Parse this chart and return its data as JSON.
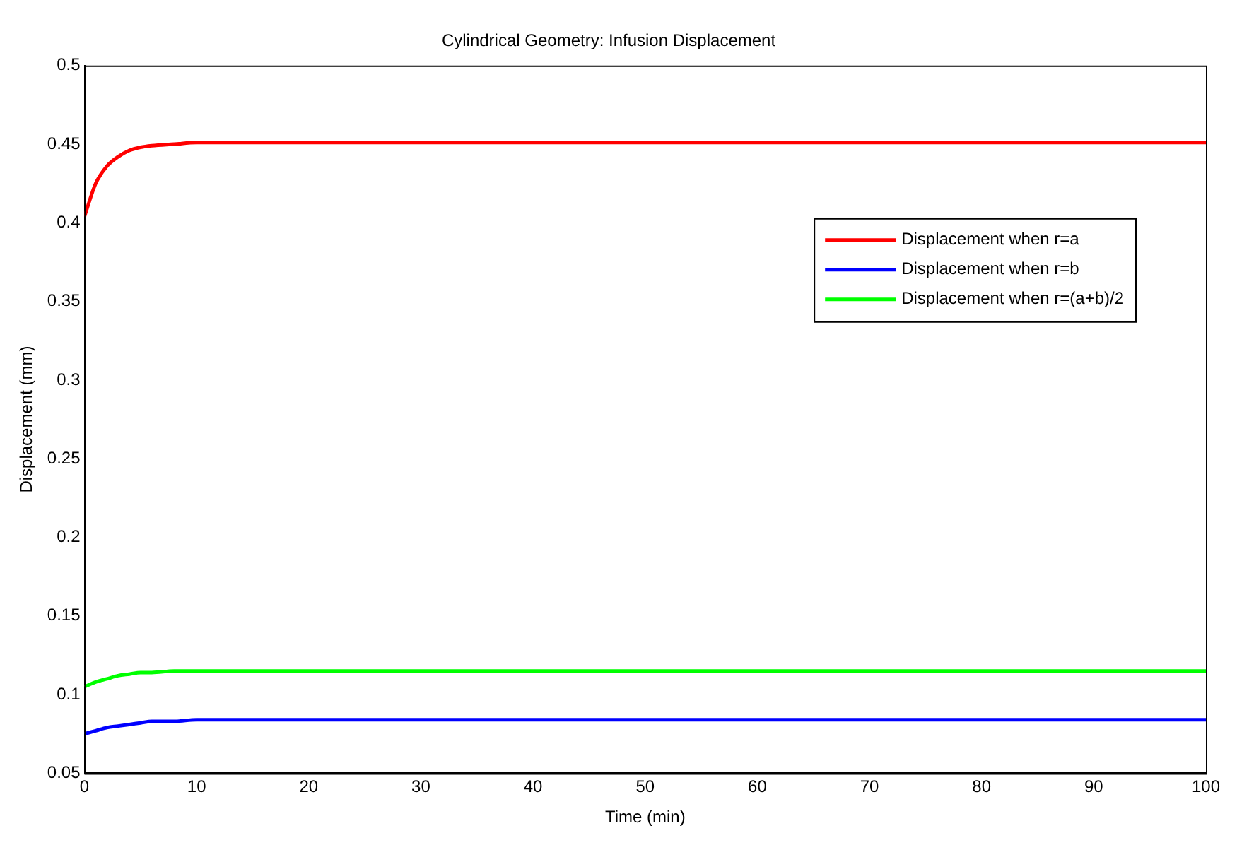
{
  "chart_data": {
    "type": "line",
    "title": "Cylindrical Geometry: Infusion Displacement",
    "xlabel": "Time (min)",
    "ylabel": "Displacement (mm)",
    "xlim": [
      0,
      100
    ],
    "ylim": [
      0.05,
      0.5
    ],
    "xticks": [
      0,
      10,
      20,
      30,
      40,
      50,
      60,
      70,
      80,
      90,
      100
    ],
    "yticks": [
      0.05,
      0.1,
      0.15,
      0.2,
      0.25,
      0.3,
      0.35,
      0.4,
      0.45,
      0.5
    ],
    "grid": false,
    "legend": "top right",
    "marker": "none",
    "line_style": "solid",
    "x": [
      0,
      1,
      2,
      3,
      4,
      5,
      6,
      8,
      10,
      20,
      40,
      60,
      80,
      100
    ],
    "series": [
      {
        "name": "Displacement when r=a",
        "color": "#ff0000",
        "values": [
          0.404,
          0.425,
          0.436,
          0.442,
          0.446,
          0.448,
          0.449,
          0.45,
          0.451,
          0.451,
          0.451,
          0.451,
          0.451,
          0.451
        ]
      },
      {
        "name": "Displacement when r=b",
        "color": "#0000ff",
        "values": [
          0.075,
          0.077,
          0.079,
          0.08,
          0.081,
          0.082,
          0.083,
          0.083,
          0.084,
          0.084,
          0.084,
          0.084,
          0.084,
          0.084
        ]
      },
      {
        "name": "Displacement when r=(a+b)/2",
        "color": "#00ff00",
        "values": [
          0.105,
          0.108,
          0.11,
          0.112,
          0.113,
          0.114,
          0.114,
          0.115,
          0.115,
          0.115,
          0.115,
          0.115,
          0.115,
          0.115
        ]
      }
    ]
  }
}
